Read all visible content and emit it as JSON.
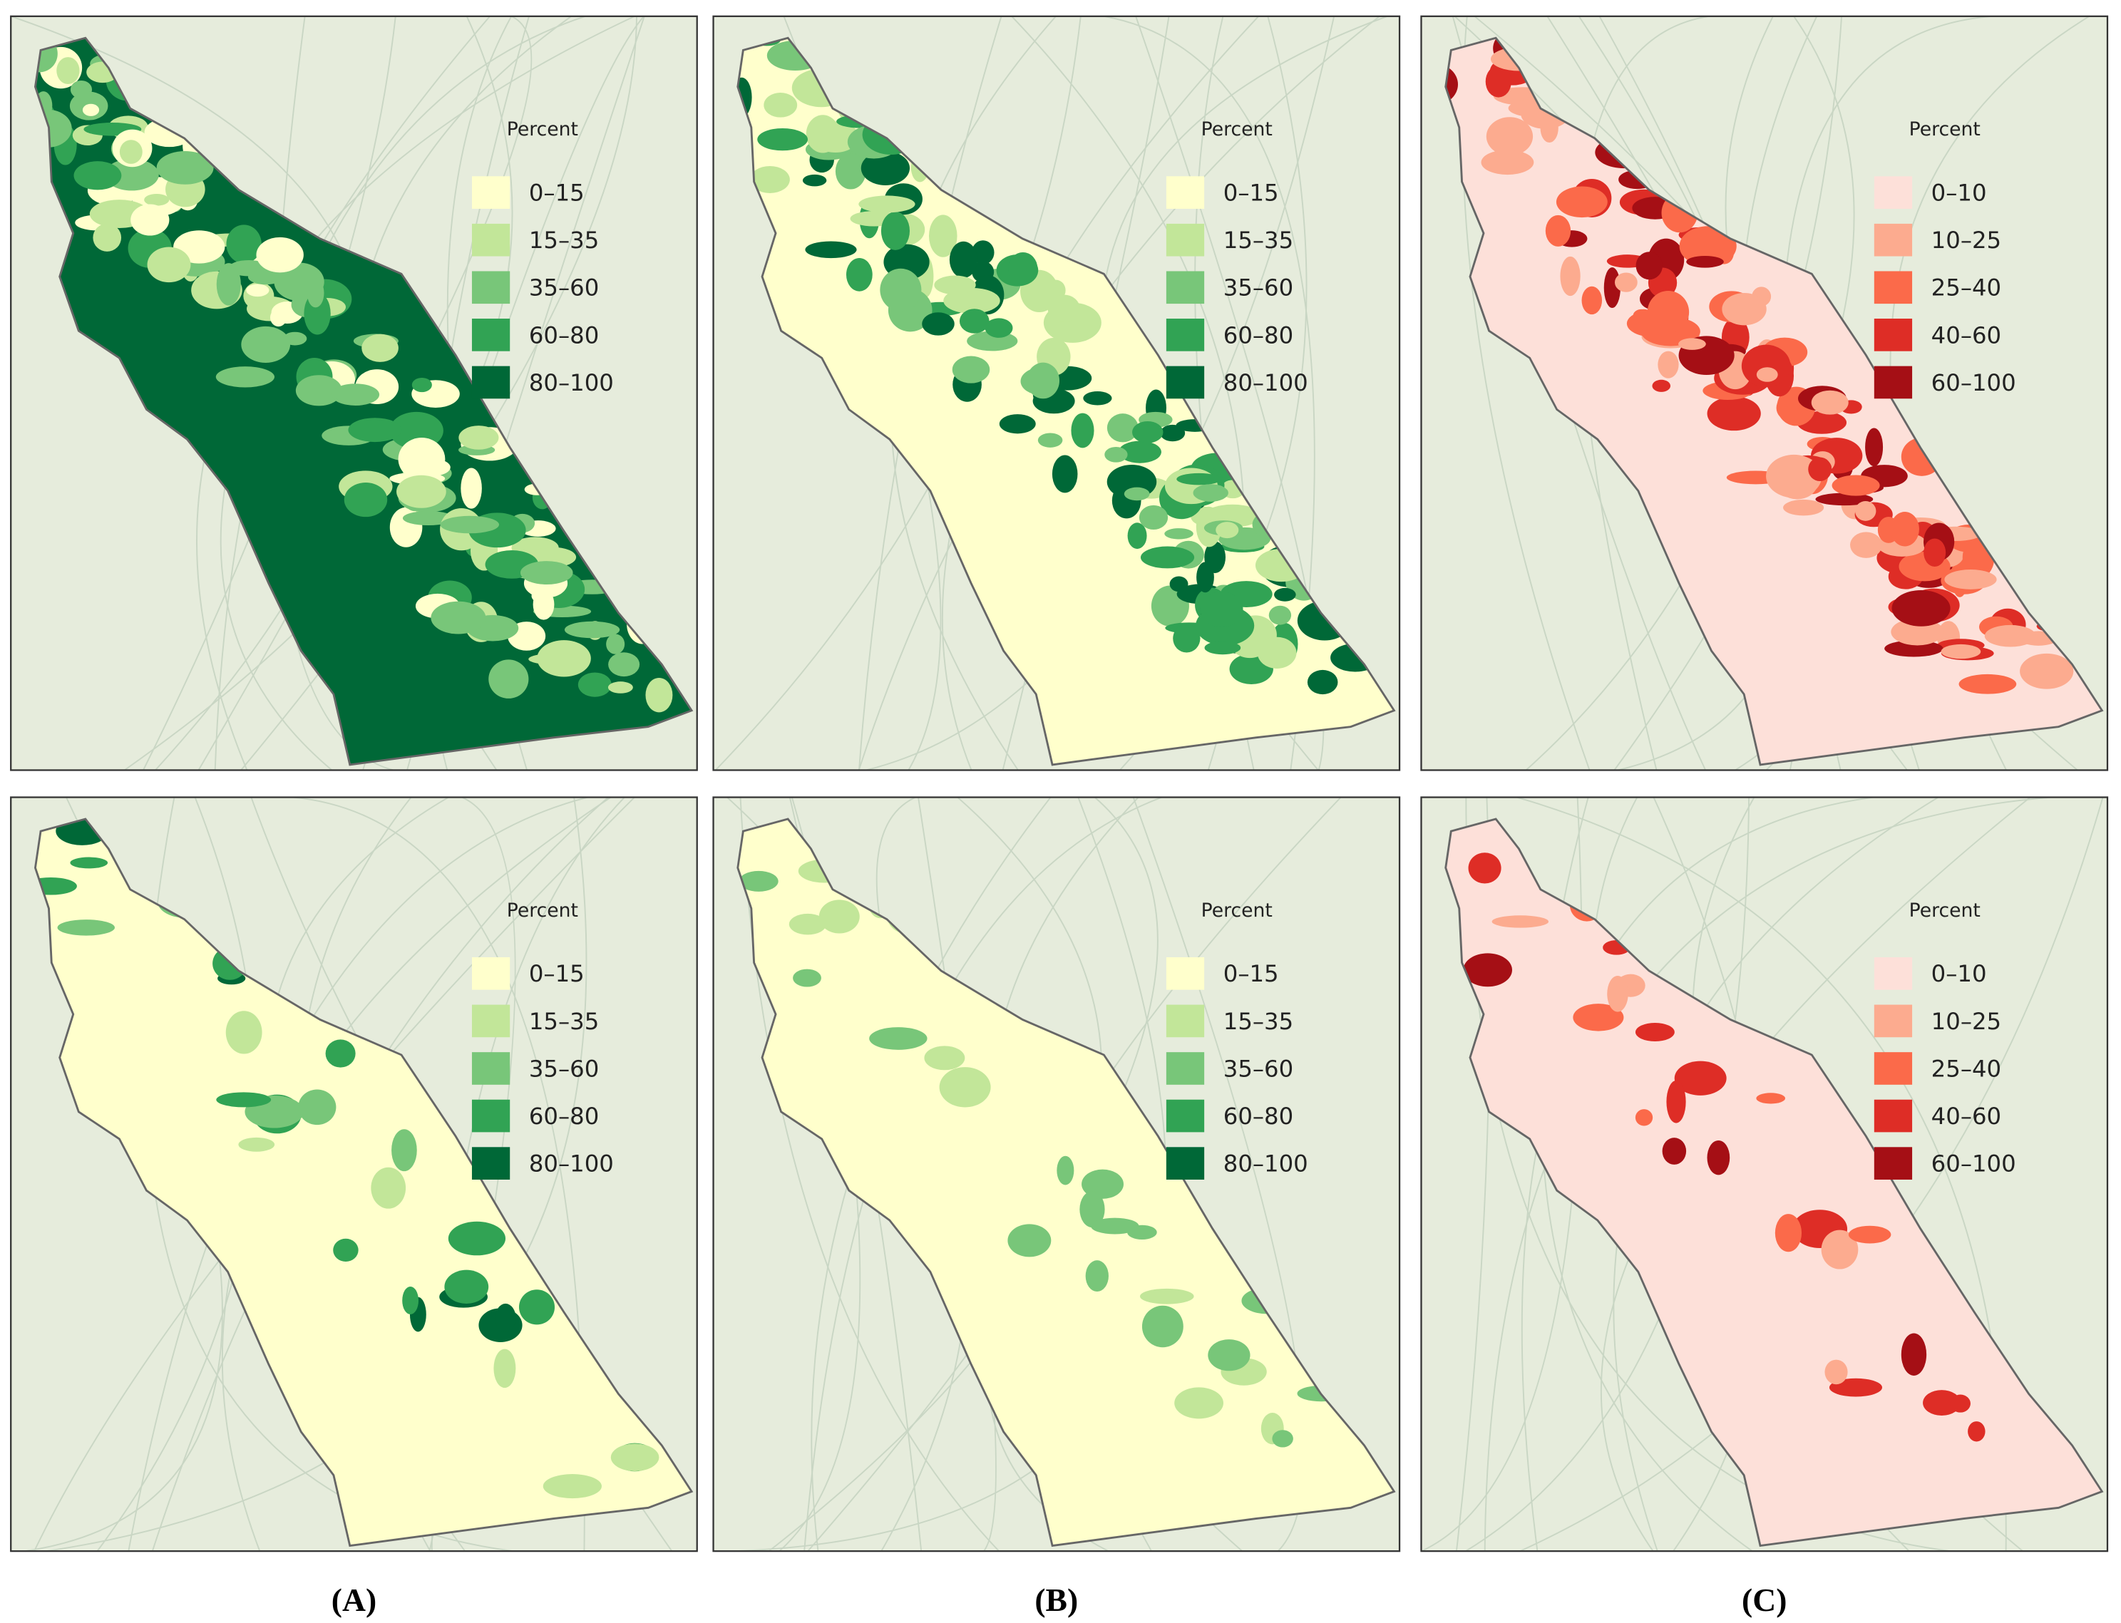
{
  "columns": [
    {
      "label": "(A)",
      "maps": [
        {
          "legend_title": "Percent",
          "legend": [
            {
              "label": "0–15",
              "color": "#ffffcc"
            },
            {
              "label": "15–35",
              "color": "#c2e699"
            },
            {
              "label": "35–60",
              "color": "#78c679"
            },
            {
              "label": "60–80",
              "color": "#31a354"
            },
            {
              "label": "80–100",
              "color": "#006837"
            }
          ]
        },
        {
          "legend_title": "Percent",
          "legend": [
            {
              "label": "0–15",
              "color": "#ffffcc"
            },
            {
              "label": "15–35",
              "color": "#c2e699"
            },
            {
              "label": "35–60",
              "color": "#78c679"
            },
            {
              "label": "60–80",
              "color": "#31a354"
            },
            {
              "label": "80–100",
              "color": "#006837"
            }
          ]
        }
      ]
    },
    {
      "label": "(B)",
      "maps": [
        {
          "legend_title": "Percent",
          "legend": [
            {
              "label": "0–15",
              "color": "#ffffcc"
            },
            {
              "label": "15–35",
              "color": "#c2e699"
            },
            {
              "label": "35–60",
              "color": "#78c679"
            },
            {
              "label": "60–80",
              "color": "#31a354"
            },
            {
              "label": "80–100",
              "color": "#006837"
            }
          ]
        },
        {
          "legend_title": "Percent",
          "legend": [
            {
              "label": "0–15",
              "color": "#ffffcc"
            },
            {
              "label": "15–35",
              "color": "#c2e699"
            },
            {
              "label": "35–60",
              "color": "#78c679"
            },
            {
              "label": "60–80",
              "color": "#31a354"
            },
            {
              "label": "80–100",
              "color": "#006837"
            }
          ]
        }
      ]
    },
    {
      "label": "(C)",
      "maps": [
        {
          "legend_title": "Percent",
          "legend": [
            {
              "label": "0–10",
              "color": "#fde0d9"
            },
            {
              "label": "10–25",
              "color": "#fcab8f"
            },
            {
              "label": "25–40",
              "color": "#fb6a4a"
            },
            {
              "label": "40–60",
              "color": "#de2d26"
            },
            {
              "label": "60–100",
              "color": "#a50f15"
            }
          ]
        },
        {
          "legend_title": "Percent",
          "legend": [
            {
              "label": "0–10",
              "color": "#fde0d9"
            },
            {
              "label": "10–25",
              "color": "#fcab8f"
            },
            {
              "label": "25–40",
              "color": "#fb6a4a"
            },
            {
              "label": "40–60",
              "color": "#de2d26"
            },
            {
              "label": "60–100",
              "color": "#a50f15"
            }
          ]
        }
      ]
    }
  ]
}
